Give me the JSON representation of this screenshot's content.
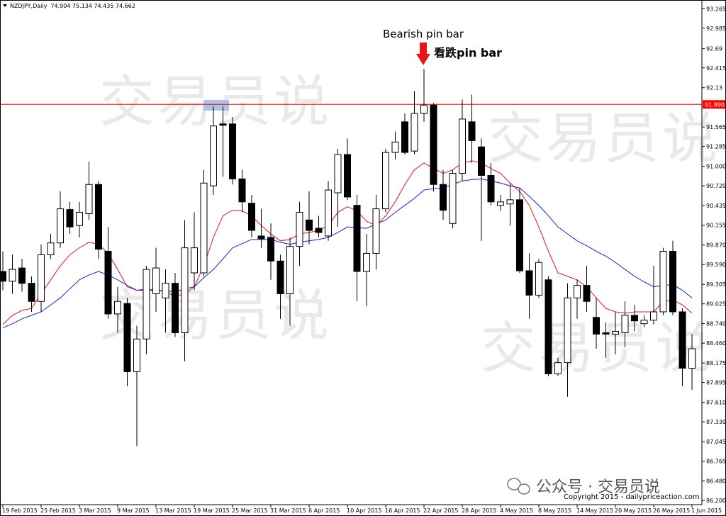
{
  "chart_data": {
    "type": "candlestick",
    "title": "NZDJPY,Daily  74.904 75.134 74.435 74.662",
    "categories": [
      "19 Feb 2015",
      null,
      null,
      null,
      "25 Feb 2015",
      null,
      null,
      null,
      "3 Mar 2015",
      null,
      null,
      null,
      "9 Mar 2015",
      null,
      null,
      null,
      "13 Mar 2015",
      null,
      null,
      null,
      "19 Mar 2015",
      null,
      null,
      null,
      "25 Mar 2015",
      null,
      null,
      null,
      "31 Mar 2015",
      null,
      null,
      null,
      "6 Apr 2015",
      null,
      null,
      null,
      "10 Apr 2015",
      null,
      null,
      null,
      "16 Apr 2015",
      null,
      null,
      null,
      "22 Apr 2015",
      null,
      null,
      null,
      "28 Apr 2015",
      null,
      null,
      null,
      "4 May 2015",
      null,
      null,
      null,
      "8 May 2015",
      null,
      null,
      null,
      "14 May 2015",
      null,
      null,
      null,
      "20 May 2015",
      null,
      null,
      null,
      "26 May 2015",
      null,
      null,
      null,
      "1 Jun 2015"
    ],
    "open": [
      89.49,
      89.35,
      89.54,
      89.32,
      89.06,
      89.73,
      89.9,
      90.38,
      90.15,
      90.32,
      90.74,
      89.78,
      88.88,
      89.03,
      88.05,
      88.52,
      89.17,
      89.11,
      89.32,
      88.61,
      89.47,
      89.47,
      90.72,
      91.61,
      91.61,
      90.82,
      90.47,
      90.0,
      89.98,
      89.64,
      89.17,
      89.85,
      90.23,
      90.11,
      90.0,
      90.62,
      91.17,
      90.44,
      89.49,
      89.75,
      90.39,
      91.2,
      91.64,
      91.22,
      91.76,
      91.88,
      90.74,
      90.18,
      90.9,
      91.64,
      91.28,
      90.87,
      90.44,
      90.46,
      90.52,
      89.5,
      89.15,
      89.37,
      88.02,
      88.18,
      89.11,
      89.29,
      88.83,
      88.61,
      88.59,
      88.61,
      88.86,
      88.74,
      88.79,
      88.91,
      89.78,
      88.91,
      88.1
    ],
    "high": [
      89.78,
      89.73,
      89.67,
      89.42,
      89.88,
      90.03,
      90.64,
      90.49,
      90.49,
      91.07,
      90.79,
      90.13,
      89.27,
      89.11,
      88.71,
      89.57,
      89.83,
      89.52,
      89.47,
      90.23,
      90.34,
      90.95,
      91.86,
      91.86,
      91.71,
      90.95,
      90.59,
      90.39,
      90.18,
      89.73,
      89.98,
      90.49,
      90.64,
      90.29,
      90.79,
      91.25,
      91.4,
      90.59,
      90.03,
      90.59,
      91.25,
      91.5,
      91.76,
      92.08,
      92.4,
      91.91,
      90.95,
      90.95,
      91.96,
      92.03,
      91.4,
      91.05,
      90.59,
      90.76,
      90.69,
      89.75,
      89.67,
      89.42,
      88.25,
      89.32,
      89.37,
      89.57,
      89.11,
      88.76,
      88.91,
      89.06,
      89.01,
      88.86,
      89.57,
      89.83,
      89.93,
      88.96,
      88.59
    ],
    "low": [
      89.22,
      89.17,
      89.2,
      88.91,
      88.91,
      89.67,
      89.83,
      90.03,
      89.98,
      90.23,
      89.67,
      88.81,
      88.61,
      87.84,
      86.98,
      88.3,
      88.91,
      88.61,
      88.55,
      88.2,
      89.22,
      89.42,
      90.59,
      90.85,
      90.74,
      90.34,
      89.98,
      89.83,
      89.37,
      88.81,
      88.71,
      89.57,
      89.88,
      89.98,
      89.93,
      90.13,
      90.52,
      89.06,
      88.99,
      89.52,
      90.34,
      91.1,
      91.17,
      91.17,
      91.64,
      90.64,
      90.23,
      90.11,
      90.79,
      91.05,
      89.93,
      90.44,
      90.36,
      90.15,
      89.47,
      88.81,
      89.11,
      87.99,
      87.99,
      87.69,
      88.81,
      88.91,
      88.38,
      88.25,
      88.3,
      88.4,
      88.63,
      88.69,
      88.73,
      88.86,
      88.86,
      87.84,
      87.79
    ],
    "close": [
      89.35,
      89.52,
      89.32,
      89.06,
      89.73,
      89.9,
      90.39,
      90.13,
      90.34,
      90.74,
      89.81,
      88.88,
      89.06,
      88.05,
      88.52,
      89.52,
      89.54,
      89.32,
      88.61,
      89.83,
      89.83,
      90.76,
      91.58,
      91.59,
      90.82,
      90.49,
      90.08,
      89.96,
      89.64,
      89.17,
      89.85,
      90.34,
      90.08,
      90.05,
      90.66,
      91.17,
      90.56,
      89.49,
      89.75,
      90.39,
      91.2,
      91.35,
      91.2,
      91.76,
      91.88,
      90.74,
      90.37,
      90.9,
      91.68,
      91.37,
      90.87,
      90.49,
      90.49,
      90.52,
      89.5,
      89.15,
      89.62,
      88.02,
      88.18,
      89.11,
      89.29,
      89.06,
      88.59,
      88.59,
      88.63,
      88.86,
      88.78,
      88.79,
      88.91,
      89.78,
      88.91,
      88.1,
      88.38
    ],
    "moving_averages": [
      {
        "color": "#e8141a",
        "values": [
          88.73,
          88.86,
          88.93,
          88.96,
          89.17,
          89.37,
          89.57,
          89.73,
          89.83,
          89.91,
          89.88,
          89.75,
          89.52,
          89.27,
          89.22,
          89.24,
          89.22,
          89.2,
          89.13,
          89.17,
          89.27,
          89.57,
          89.98,
          90.29,
          90.37,
          90.36,
          90.29,
          90.15,
          90.03,
          89.93,
          89.95,
          90.03,
          90.05,
          90.08,
          90.15,
          90.34,
          90.42,
          90.36,
          90.21,
          90.15,
          90.29,
          90.49,
          90.74,
          90.95,
          91.05,
          90.97,
          90.9,
          90.95,
          91.05,
          91.08,
          91.05,
          90.97,
          90.9,
          90.76,
          90.64,
          90.44,
          90.13,
          89.78,
          89.47,
          89.42,
          89.37,
          89.27,
          89.11,
          88.96,
          88.91,
          88.89,
          88.91,
          88.91,
          88.91,
          89.06,
          89.08,
          89.01,
          88.89
        ]
      },
      {
        "color": "#1c1ce0",
        "values": [
          88.68,
          88.74,
          88.81,
          88.86,
          88.91,
          89.01,
          89.11,
          89.24,
          89.37,
          89.44,
          89.49,
          89.44,
          89.37,
          89.29,
          89.22,
          89.22,
          89.22,
          89.21,
          89.2,
          89.24,
          89.27,
          89.4,
          89.52,
          89.67,
          89.83,
          89.89,
          89.95,
          89.95,
          89.95,
          89.91,
          89.88,
          89.91,
          89.93,
          89.95,
          89.98,
          90.05,
          90.13,
          90.12,
          90.11,
          90.17,
          90.23,
          90.34,
          90.44,
          90.54,
          90.66,
          90.68,
          90.69,
          90.74,
          90.79,
          90.81,
          90.82,
          90.79,
          90.76,
          90.72,
          90.69,
          90.57,
          90.44,
          90.29,
          90.13,
          90.03,
          89.93,
          89.86,
          89.78,
          89.71,
          89.62,
          89.52,
          89.42,
          89.34,
          89.27,
          89.29,
          89.3,
          89.22,
          89.11
        ]
      }
    ],
    "ylim": [
      86.14,
      93.39
    ],
    "yticks": [
      93.265,
      92.985,
      92.69,
      92.415,
      92.13,
      91.565,
      91.285,
      {
        "value": 91,
        "label": "91.000"
      },
      {
        "value": 90.72,
        "label": "90.720"
      },
      90.435,
      90.155,
      {
        "value": 89.87,
        "label": "89.870"
      },
      {
        "value": 89.59,
        "label": "89.590"
      },
      89.305,
      89.025,
      {
        "value": 88.74,
        "label": "88.740"
      },
      {
        "value": 88.46,
        "label": "88.460"
      },
      88.175,
      87.895,
      {
        "value": 87.61,
        "label": "87.610"
      },
      {
        "value": 87.33,
        "label": "87.330"
      },
      87.045,
      86.765,
      {
        "value": 86.48,
        "label": "86.480"
      },
      {
        "value": 86.2,
        "label": "86.200"
      }
    ],
    "hline": {
      "value": 91.89,
      "label": "91.890",
      "color": "#ff0000"
    },
    "annotations": [
      "Bearish pin bar",
      "看跌pin bar"
    ],
    "watermark": "交易员说",
    "copyright": "Copyright 2015 - dailypriceaction.com",
    "overlay": "公众号 · 交易员说"
  }
}
